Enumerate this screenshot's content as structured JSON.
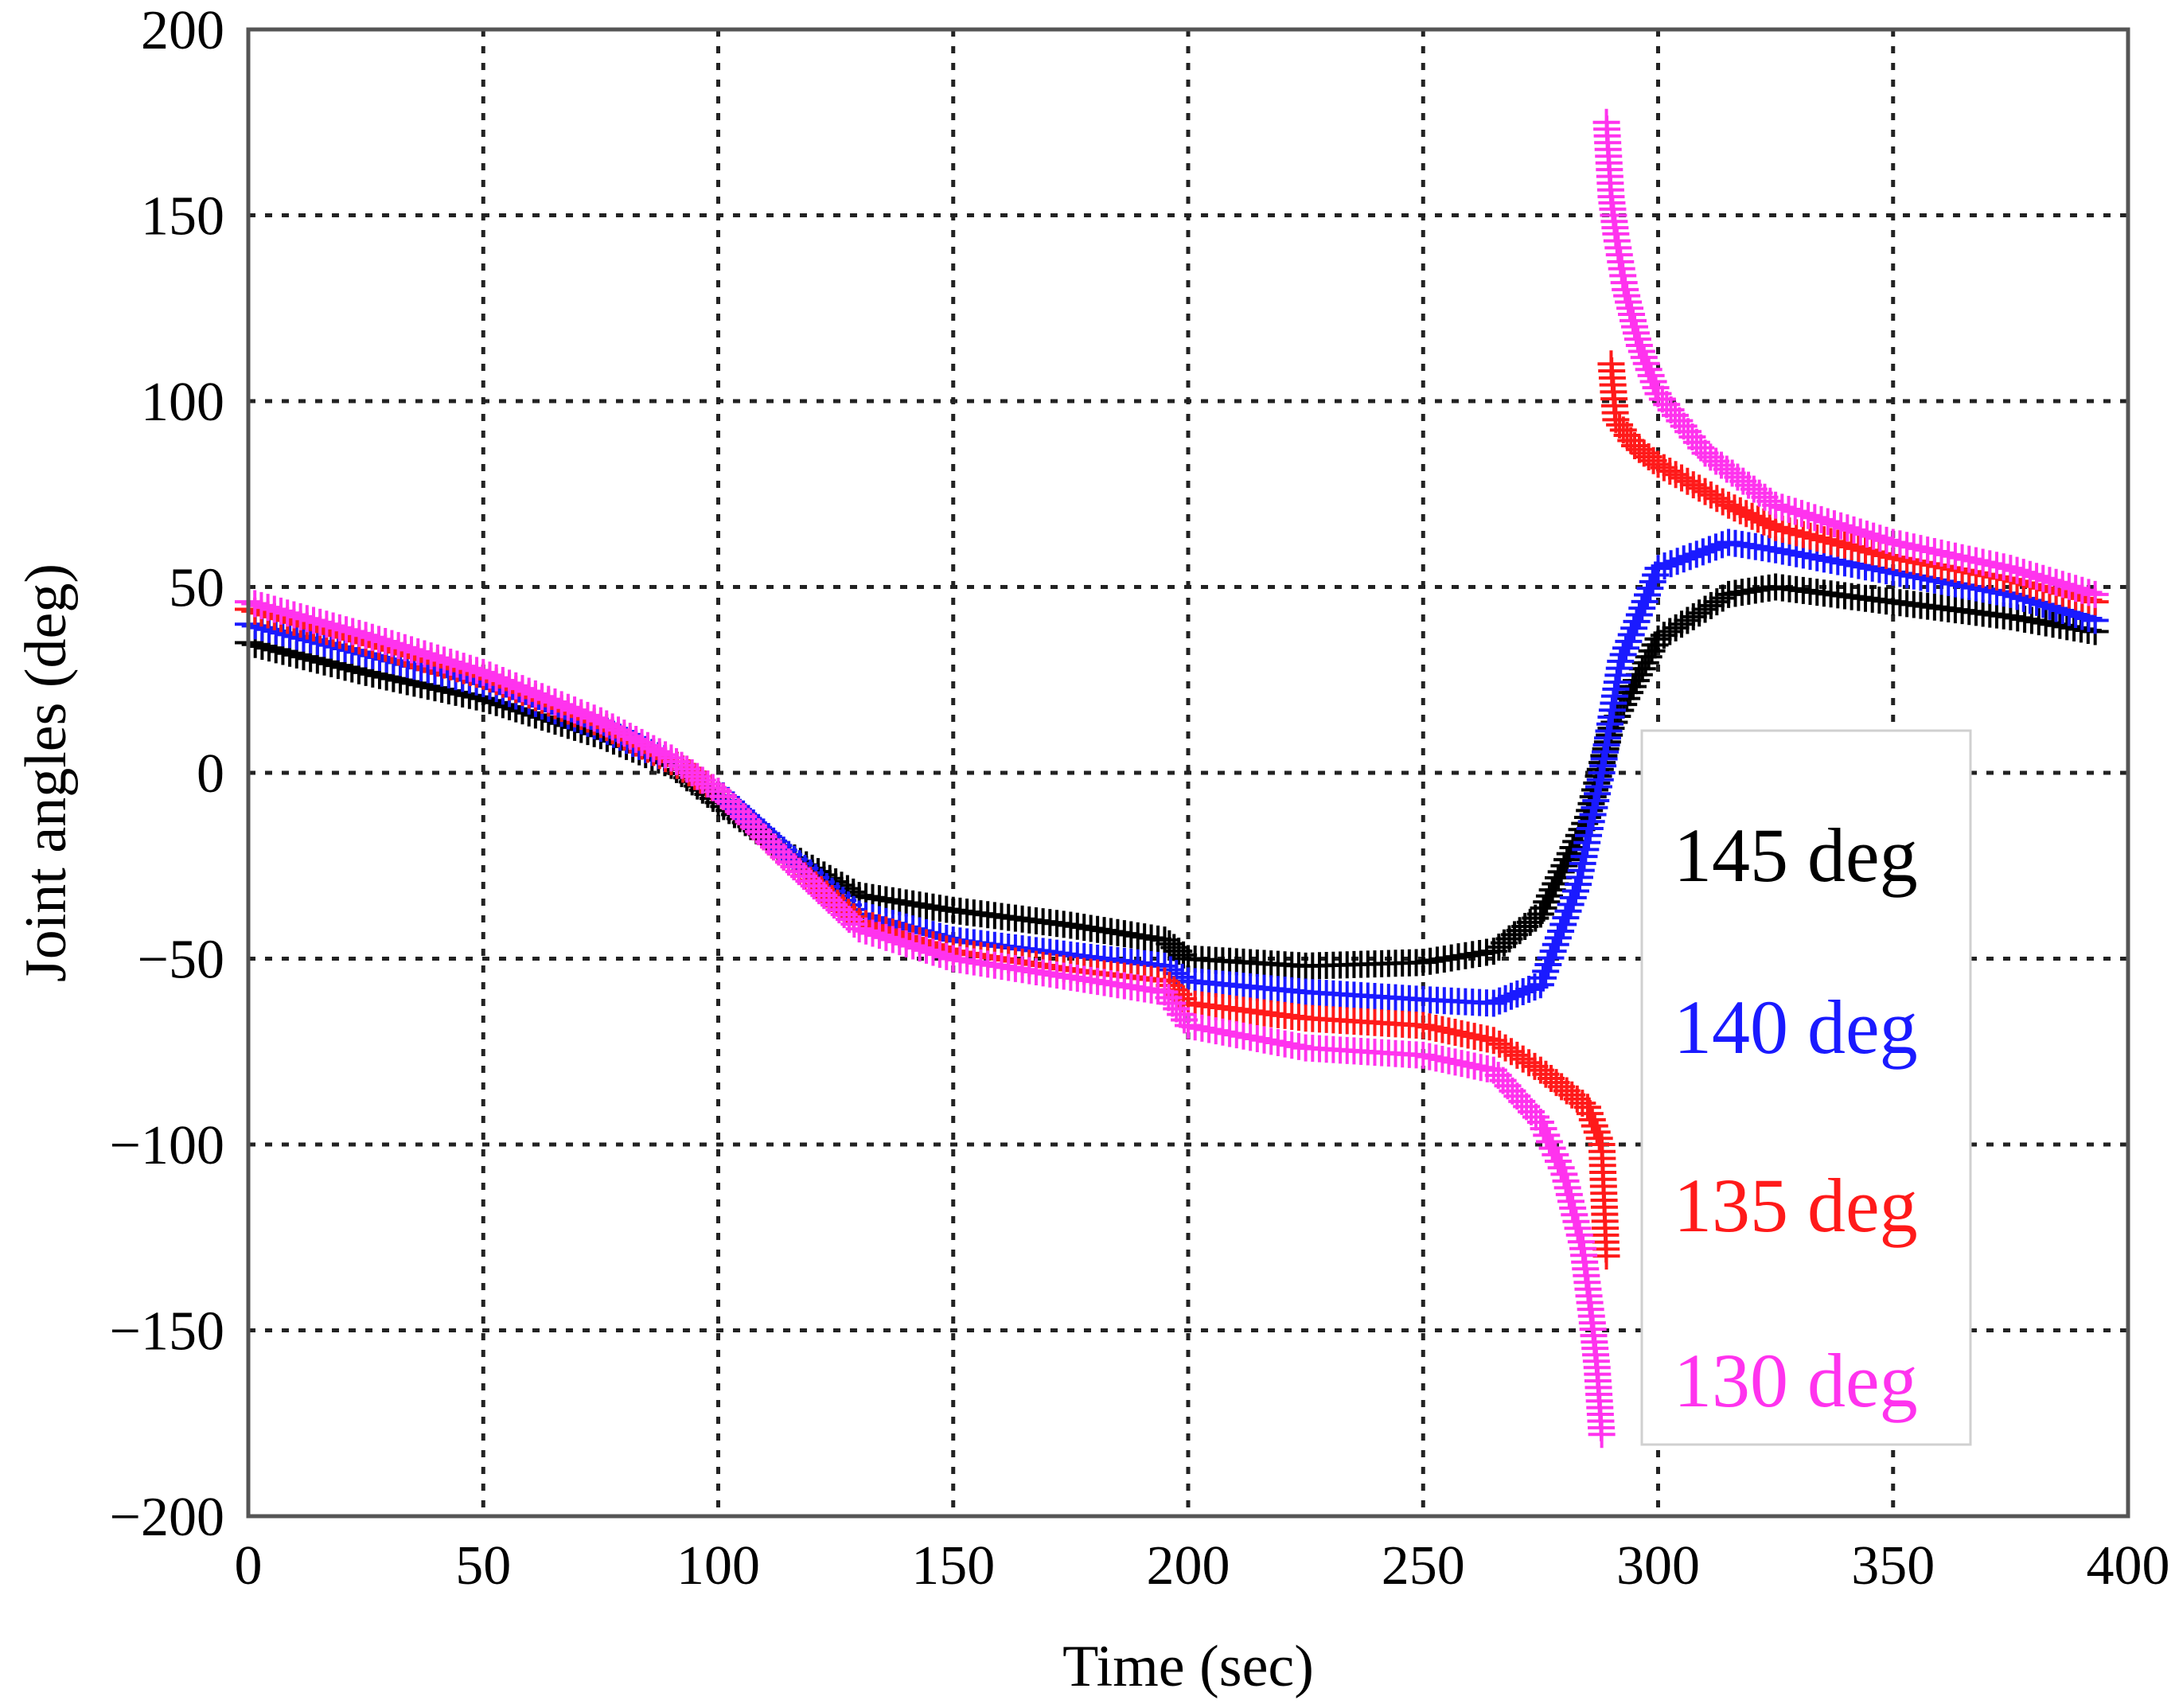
{
  "chart_data": {
    "type": "scatter",
    "title": "",
    "xlabel": "Time (sec)",
    "ylabel": "Joint angles (deg)",
    "xlim": [
      0,
      400
    ],
    "ylim": [
      -200,
      200
    ],
    "grid": true,
    "legend_position": "right-center",
    "x_ticks": [
      0,
      50,
      100,
      150,
      200,
      250,
      300,
      350,
      400
    ],
    "x_tick_labels": [
      "0",
      "50",
      "100",
      "150",
      "200",
      "250",
      "300",
      "350",
      "400"
    ],
    "y_ticks": [
      -200,
      -150,
      -100,
      -50,
      0,
      50,
      100,
      150,
      200
    ],
    "y_tick_labels": [
      "−200",
      "−150",
      "−100",
      "−50",
      "0",
      "50",
      "100",
      "150",
      "200"
    ],
    "marker": "+",
    "series": [
      {
        "name": "145 deg",
        "color": "#000000",
        "x": [
          0,
          25,
          50,
          75,
          90,
          100,
          115,
          130,
          150,
          175,
          195,
          200,
          225,
          250,
          265,
          275,
          285,
          290,
          300,
          315,
          325,
          350,
          375,
          393
        ],
        "y": [
          35,
          27,
          20,
          10,
          2,
          -8,
          -22,
          -33,
          -37,
          -41,
          -45,
          -50,
          -52,
          -51,
          -48,
          -38,
          -12,
          12,
          36,
          48,
          50,
          46,
          42,
          38
        ]
      },
      {
        "name": "140 deg",
        "color": "#1a1aff",
        "x": [
          0,
          25,
          50,
          75,
          90,
          100,
          115,
          130,
          150,
          175,
          195,
          200,
          225,
          250,
          265,
          275,
          283,
          288,
          292,
          300,
          315,
          325,
          350,
          375,
          393
        ],
        "y": [
          40,
          32,
          24,
          12,
          3,
          -5,
          -22,
          -38,
          -45,
          -49,
          -52,
          -56,
          -59,
          -61,
          -62,
          -57,
          -30,
          0,
          30,
          55,
          62,
          60,
          54,
          48,
          41
        ]
      },
      {
        "name": "135 deg",
        "color": "#ff1a1a",
        "x": [
          0,
          25,
          50,
          75,
          90,
          100,
          115,
          130,
          150,
          175,
          195,
          200,
          225,
          250,
          265,
          275,
          285,
          288,
          289,
          290,
          291,
          295,
          300,
          315,
          325,
          350,
          375,
          393
        ],
        "y": [
          44,
          35,
          26,
          13,
          3,
          -5,
          -24,
          -40,
          -48,
          -53,
          -56,
          -62,
          -66,
          -68,
          -72,
          -80,
          -90,
          -100,
          -130,
          110,
          95,
          88,
          83,
          72,
          66,
          58,
          52,
          46
        ],
        "break_after_index": 18
      },
      {
        "name": "130 deg",
        "color": "#ff33ee",
        "x": [
          0,
          25,
          50,
          75,
          90,
          100,
          115,
          130,
          150,
          175,
          195,
          200,
          225,
          250,
          265,
          275,
          280,
          284,
          286,
          287,
          288,
          289,
          290,
          291,
          293,
          296,
          300,
          310,
          325,
          350,
          375,
          393
        ],
        "y": [
          46,
          37,
          27,
          14,
          4,
          -5,
          -24,
          -42,
          -50,
          -55,
          -59,
          -68,
          -74,
          -76,
          -80,
          -94,
          -108,
          -128,
          -148,
          -160,
          -178,
          175,
          155,
          145,
          130,
          115,
          102,
          86,
          72,
          62,
          55,
          48
        ],
        "break_after_index": 20
      }
    ]
  }
}
